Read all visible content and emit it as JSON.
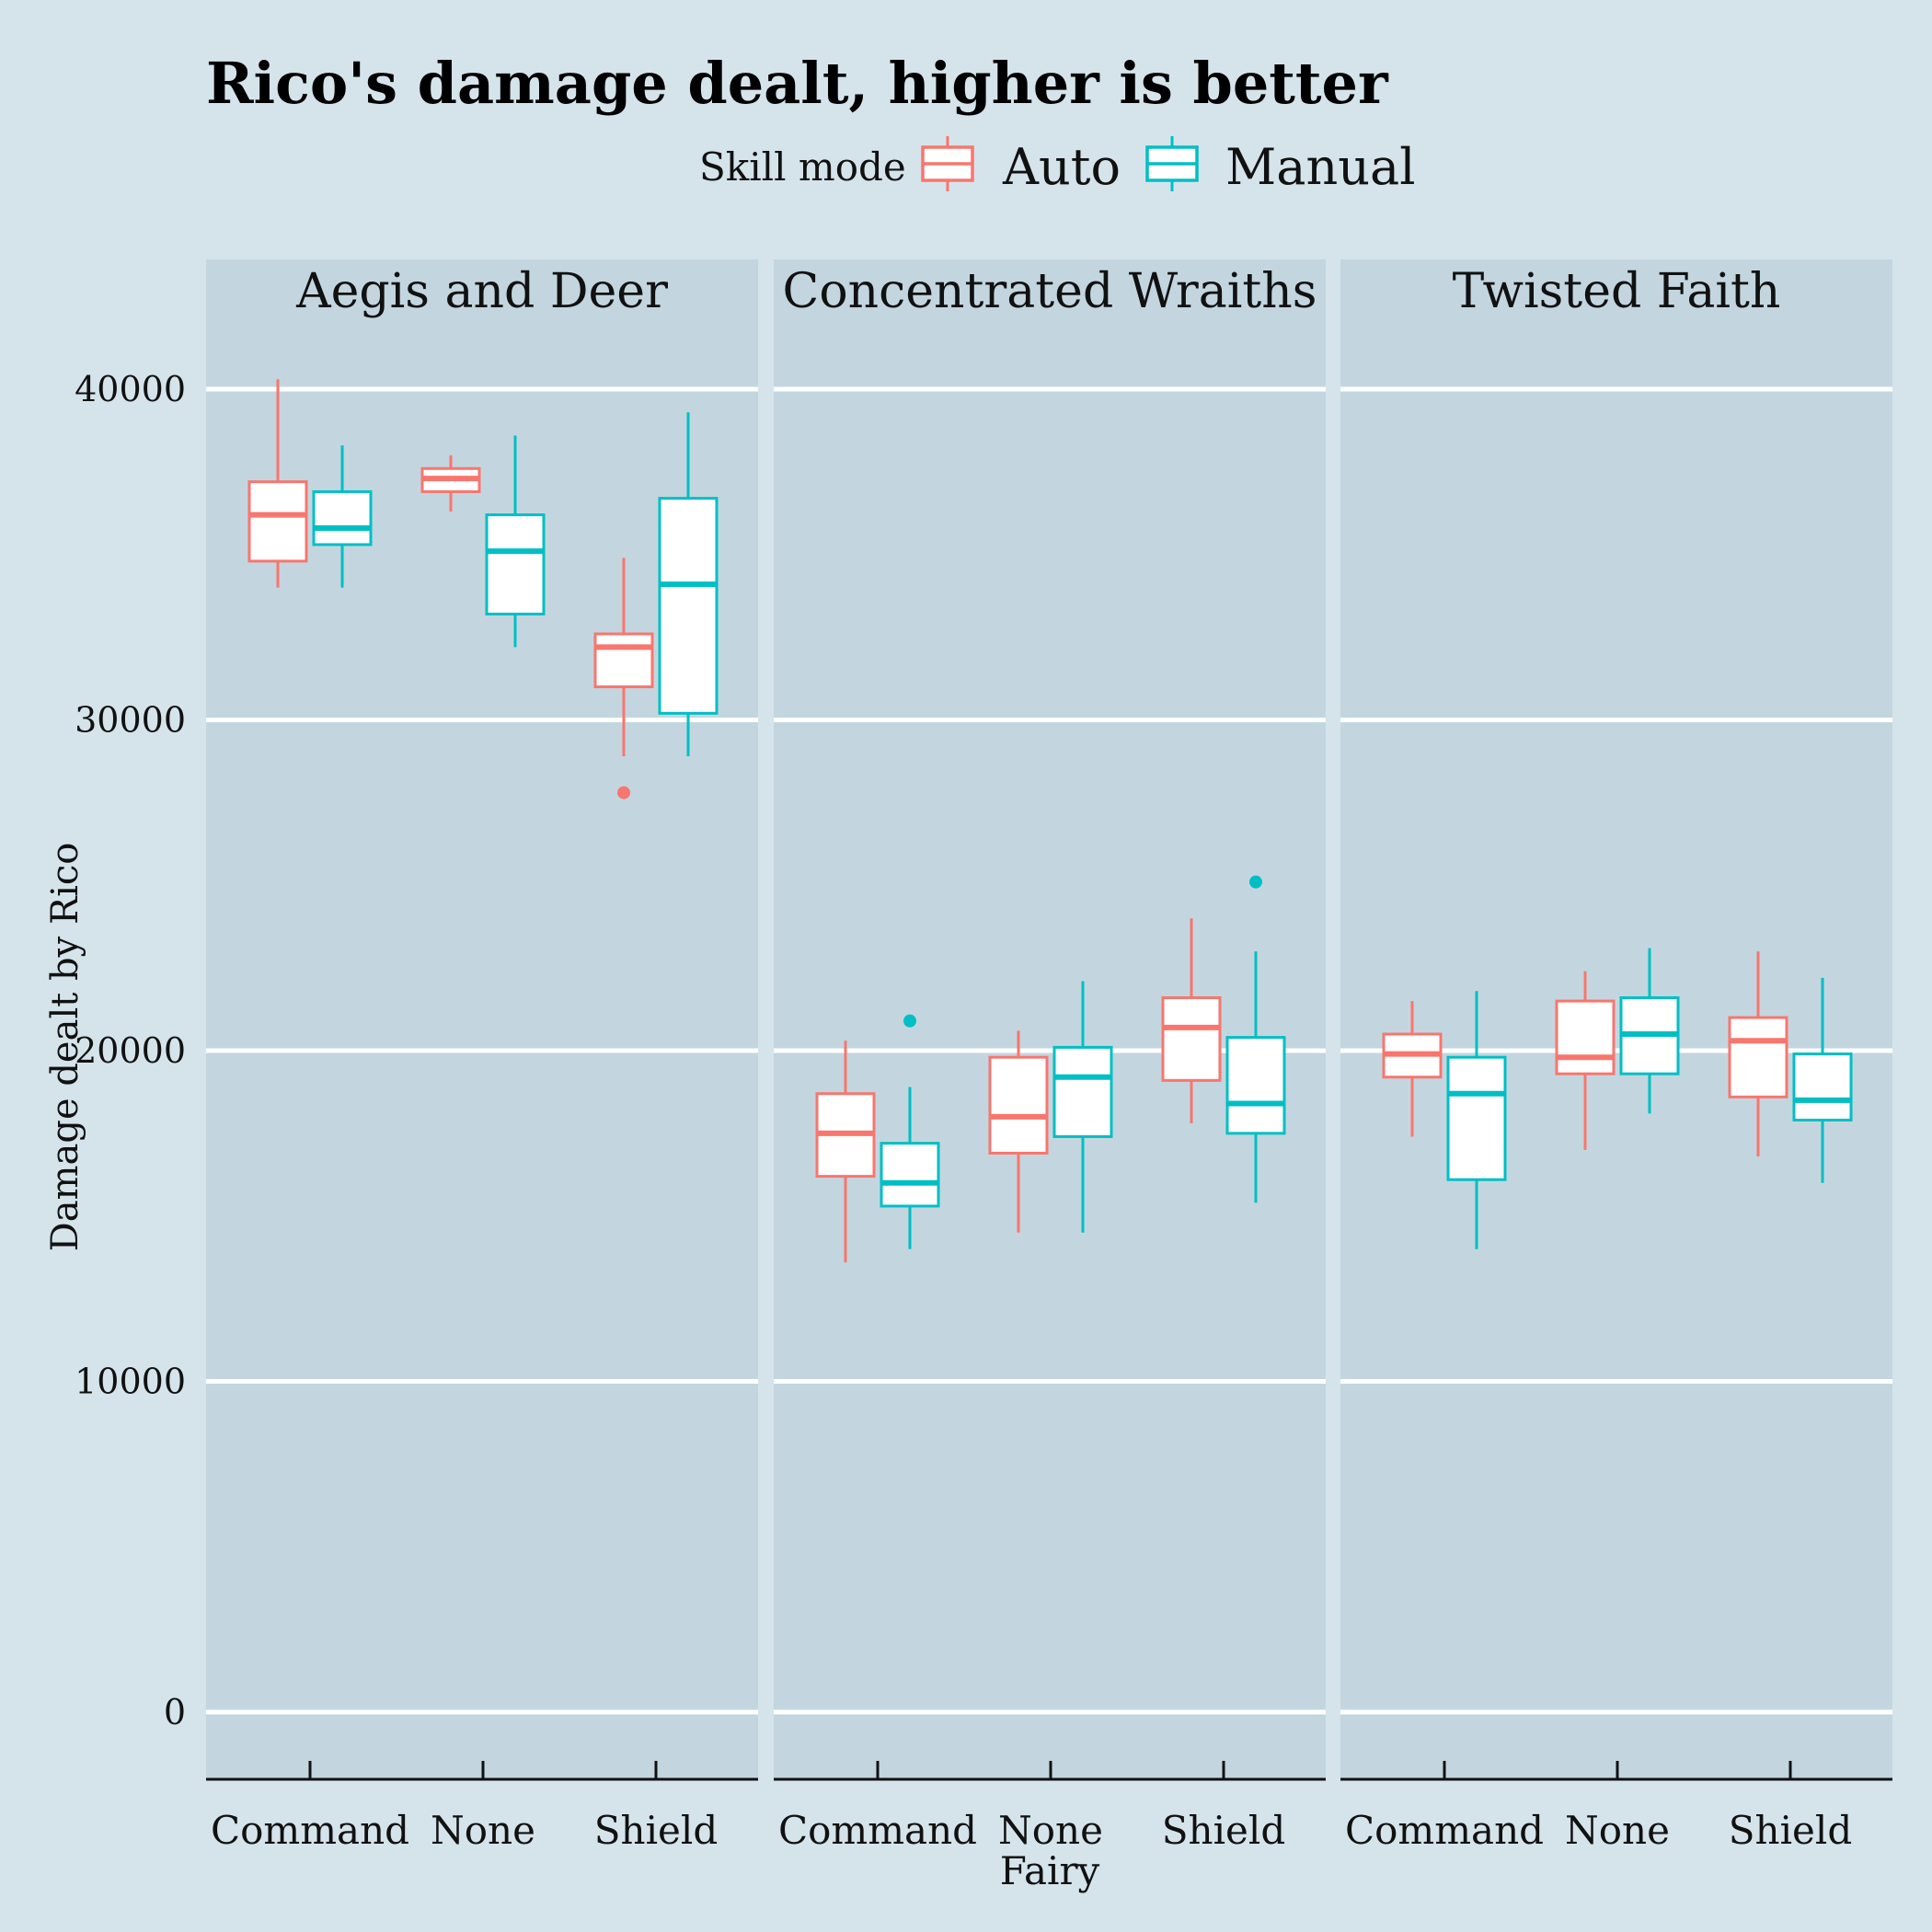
{
  "chart_data": {
    "type": "boxplot",
    "title": "Rico's damage dealt, higher is better",
    "xlabel": "Fairy",
    "ylabel": "Damage dealt by Rico",
    "ylim": [
      -2000,
      44000
    ],
    "yticks": [
      0,
      10000,
      20000,
      30000,
      40000
    ],
    "grid": "horizontal major",
    "legend": {
      "title": "Skill mode",
      "position": "top",
      "entries": [
        {
          "name": "Auto",
          "color": "#f8766d"
        },
        {
          "name": "Manual",
          "color": "#00bfc4"
        }
      ]
    },
    "categories": [
      "Command",
      "None",
      "Shield"
    ],
    "facets": [
      {
        "name": "Aegis and Deer",
        "groups": [
          {
            "category": "Command",
            "mode": "Auto",
            "min": 34000,
            "q1": 34800,
            "median": 36200,
            "q3": 37200,
            "max": 40300,
            "outliers": []
          },
          {
            "category": "Command",
            "mode": "Manual",
            "min": 34000,
            "q1": 35300,
            "median": 35800,
            "q3": 36900,
            "max": 38300,
            "outliers": []
          },
          {
            "category": "None",
            "mode": "Auto",
            "min": 36300,
            "q1": 36900,
            "median": 37300,
            "q3": 37600,
            "max": 38000,
            "outliers": []
          },
          {
            "category": "None",
            "mode": "Manual",
            "min": 32200,
            "q1": 33200,
            "median": 35100,
            "q3": 36200,
            "max": 38600,
            "outliers": []
          },
          {
            "category": "Shield",
            "mode": "Auto",
            "min": 28900,
            "q1": 31000,
            "median": 32200,
            "q3": 32600,
            "max": 34900,
            "outliers": [
              27800
            ]
          },
          {
            "category": "Shield",
            "mode": "Manual",
            "min": 28900,
            "q1": 30200,
            "median": 34100,
            "q3": 36700,
            "max": 39300,
            "outliers": []
          }
        ]
      },
      {
        "name": "Concentrated Wraiths",
        "groups": [
          {
            "category": "Command",
            "mode": "Auto",
            "min": 13600,
            "q1": 16200,
            "median": 17500,
            "q3": 18700,
            "max": 20300,
            "outliers": []
          },
          {
            "category": "Command",
            "mode": "Manual",
            "min": 14000,
            "q1": 15300,
            "median": 16000,
            "q3": 17200,
            "max": 18900,
            "outliers": [
              20900
            ]
          },
          {
            "category": "None",
            "mode": "Auto",
            "min": 14500,
            "q1": 16900,
            "median": 18000,
            "q3": 19800,
            "max": 20600,
            "outliers": []
          },
          {
            "category": "None",
            "mode": "Manual",
            "min": 14500,
            "q1": 17400,
            "median": 19200,
            "q3": 20100,
            "max": 22100,
            "outliers": []
          },
          {
            "category": "Shield",
            "mode": "Auto",
            "min": 17800,
            "q1": 19100,
            "median": 20700,
            "q3": 21600,
            "max": 24000,
            "outliers": []
          },
          {
            "category": "Shield",
            "mode": "Manual",
            "min": 15400,
            "q1": 17500,
            "median": 18400,
            "q3": 20400,
            "max": 23000,
            "outliers": [
              25100
            ]
          }
        ]
      },
      {
        "name": "Twisted Faith",
        "groups": [
          {
            "category": "Command",
            "mode": "Auto",
            "min": 17400,
            "q1": 19200,
            "median": 19900,
            "q3": 20500,
            "max": 21500,
            "outliers": []
          },
          {
            "category": "Command",
            "mode": "Manual",
            "min": 14000,
            "q1": 16100,
            "median": 18700,
            "q3": 19800,
            "max": 21800,
            "outliers": []
          },
          {
            "category": "None",
            "mode": "Auto",
            "min": 17000,
            "q1": 19300,
            "median": 19800,
            "q3": 21500,
            "max": 22400,
            "outliers": []
          },
          {
            "category": "None",
            "mode": "Manual",
            "min": 18100,
            "q1": 19300,
            "median": 20500,
            "q3": 21600,
            "max": 23100,
            "outliers": []
          },
          {
            "category": "Shield",
            "mode": "Auto",
            "min": 16800,
            "q1": 18600,
            "median": 20300,
            "q3": 21000,
            "max": 23000,
            "outliers": []
          },
          {
            "category": "Shield",
            "mode": "Manual",
            "min": 16000,
            "q1": 17900,
            "median": 18500,
            "q3": 19900,
            "max": 22200,
            "outliers": []
          }
        ]
      }
    ]
  }
}
